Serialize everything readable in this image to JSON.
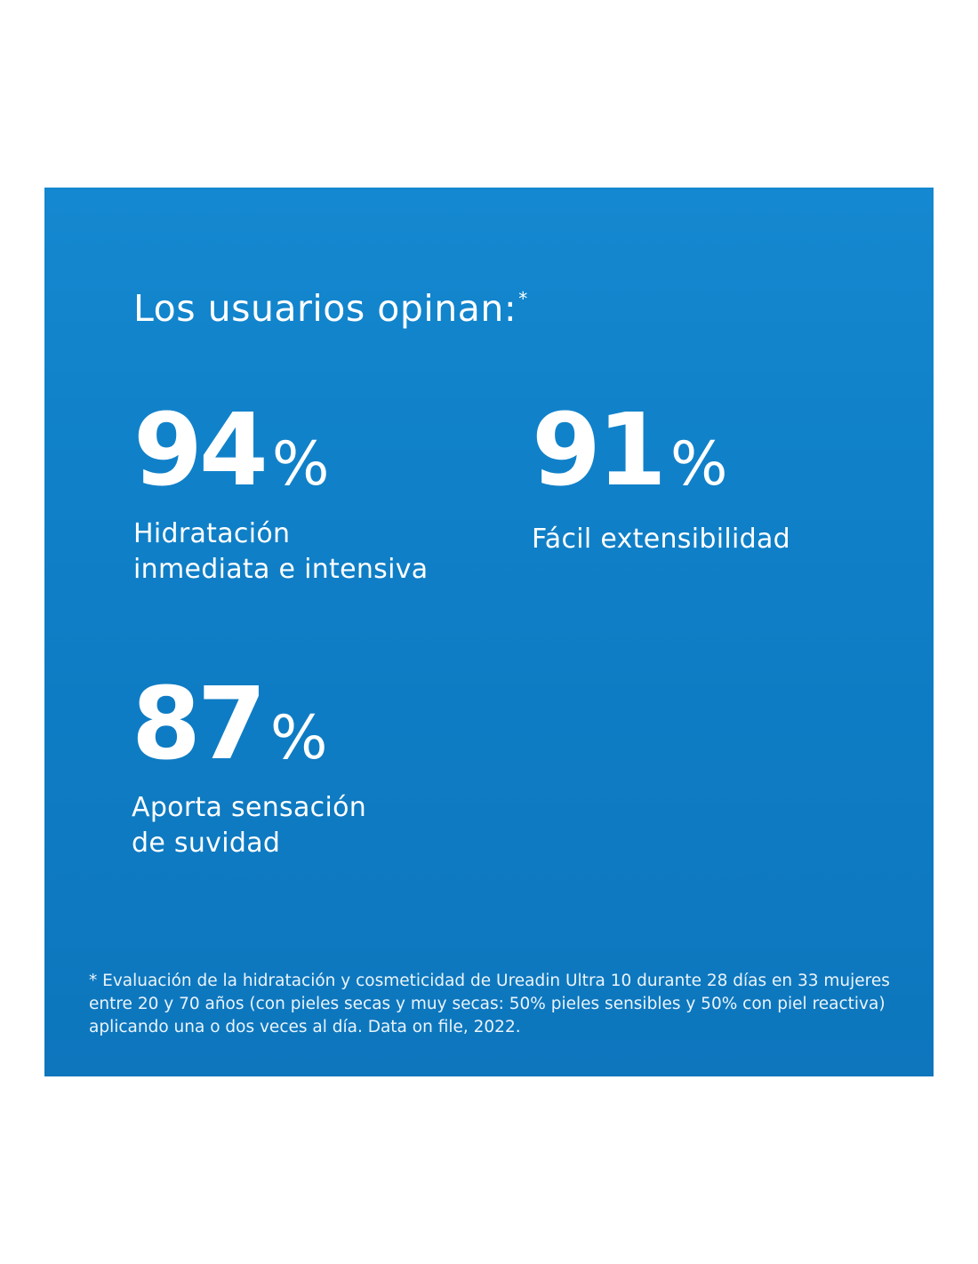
{
  "heading": {
    "text": "Los usuarios opinan:",
    "marker": "*"
  },
  "stats": [
    {
      "value": "94",
      "unit": "%",
      "label_line1": "Hidratación",
      "label_line2": "inmediata e intensiva"
    },
    {
      "value": "91",
      "unit": "%",
      "label_line1": "Fácil extensibilidad",
      "label_line2": ""
    },
    {
      "value": "87",
      "unit": "%",
      "label_line1": "Aporta sensación",
      "label_line2": "de suvidad"
    }
  ],
  "footnote": "* Evaluación de la hidratación y cosmeticidad de Ureadin Ultra 10 durante 28 días en 33 mujeres entre 20 y 70 años (con pieles secas y muy secas: 50% pieles sensibles y 50% con piel reactiva) aplicando una o dos veces al día. Data on file, 2022.",
  "colors": {
    "panel_background": "#0f7fc7",
    "text": "#ffffff",
    "page_background": "#ffffff"
  }
}
